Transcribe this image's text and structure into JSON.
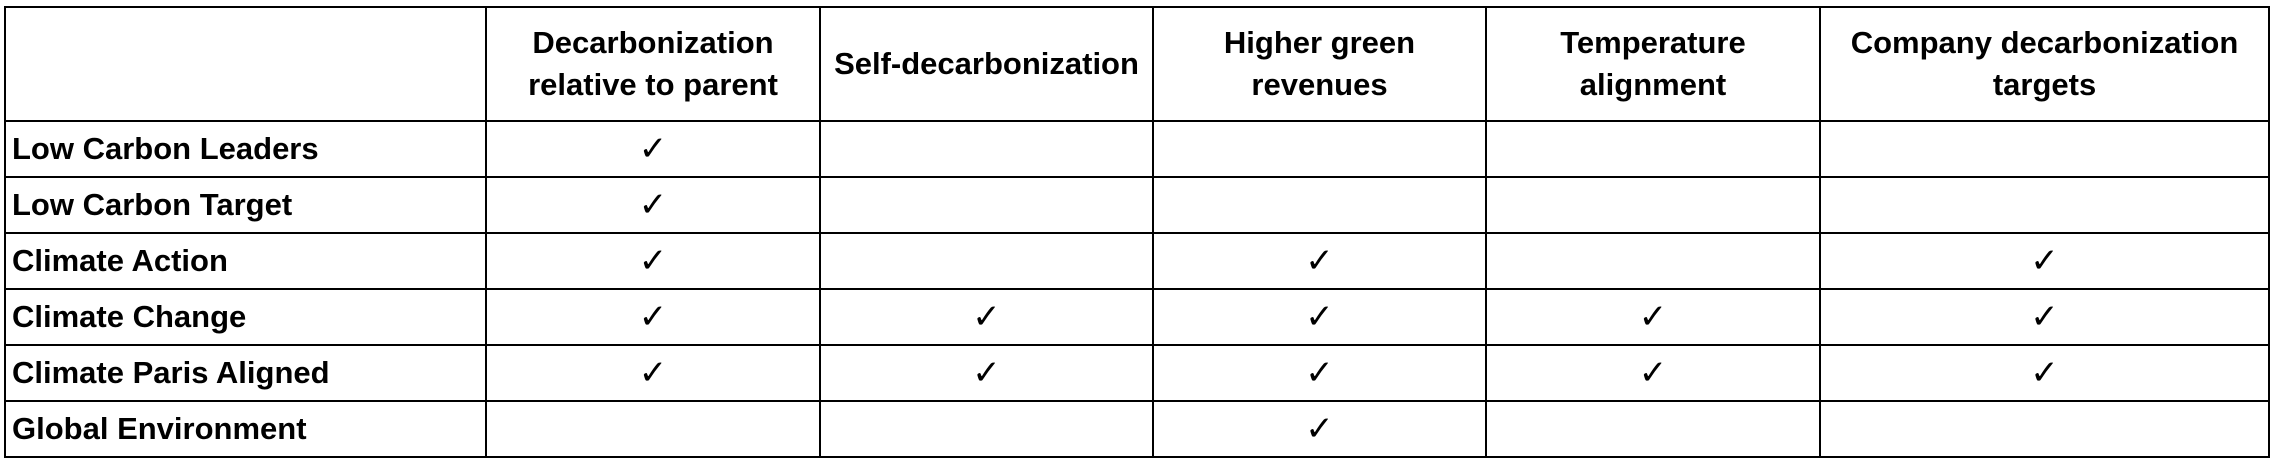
{
  "table": {
    "header": [
      "Decarbonization relative to parent",
      "Self-decarbonization",
      "Higher green revenues",
      "Temperature alignment",
      "Company decarbonization targets"
    ],
    "rows": [
      {
        "label": "Low Carbon Leaders",
        "cells": [
          "✓",
          null,
          null,
          null,
          null
        ]
      },
      {
        "label": "Low Carbon Target",
        "cells": [
          "✓",
          null,
          null,
          null,
          null
        ]
      },
      {
        "label": "Climate Action",
        "cells": [
          "✓",
          null,
          "✓",
          null,
          "✓"
        ]
      },
      {
        "label": "Climate Change",
        "cells": [
          "✓",
          "✓",
          "✓",
          "✓",
          "✓"
        ]
      },
      {
        "label": "Climate Paris Aligned",
        "cells": [
          "✓",
          "✓",
          "✓",
          "✓",
          "✓"
        ]
      },
      {
        "label": "Global Environment",
        "cells": [
          null,
          null,
          "✓",
          null,
          null
        ]
      }
    ]
  }
}
